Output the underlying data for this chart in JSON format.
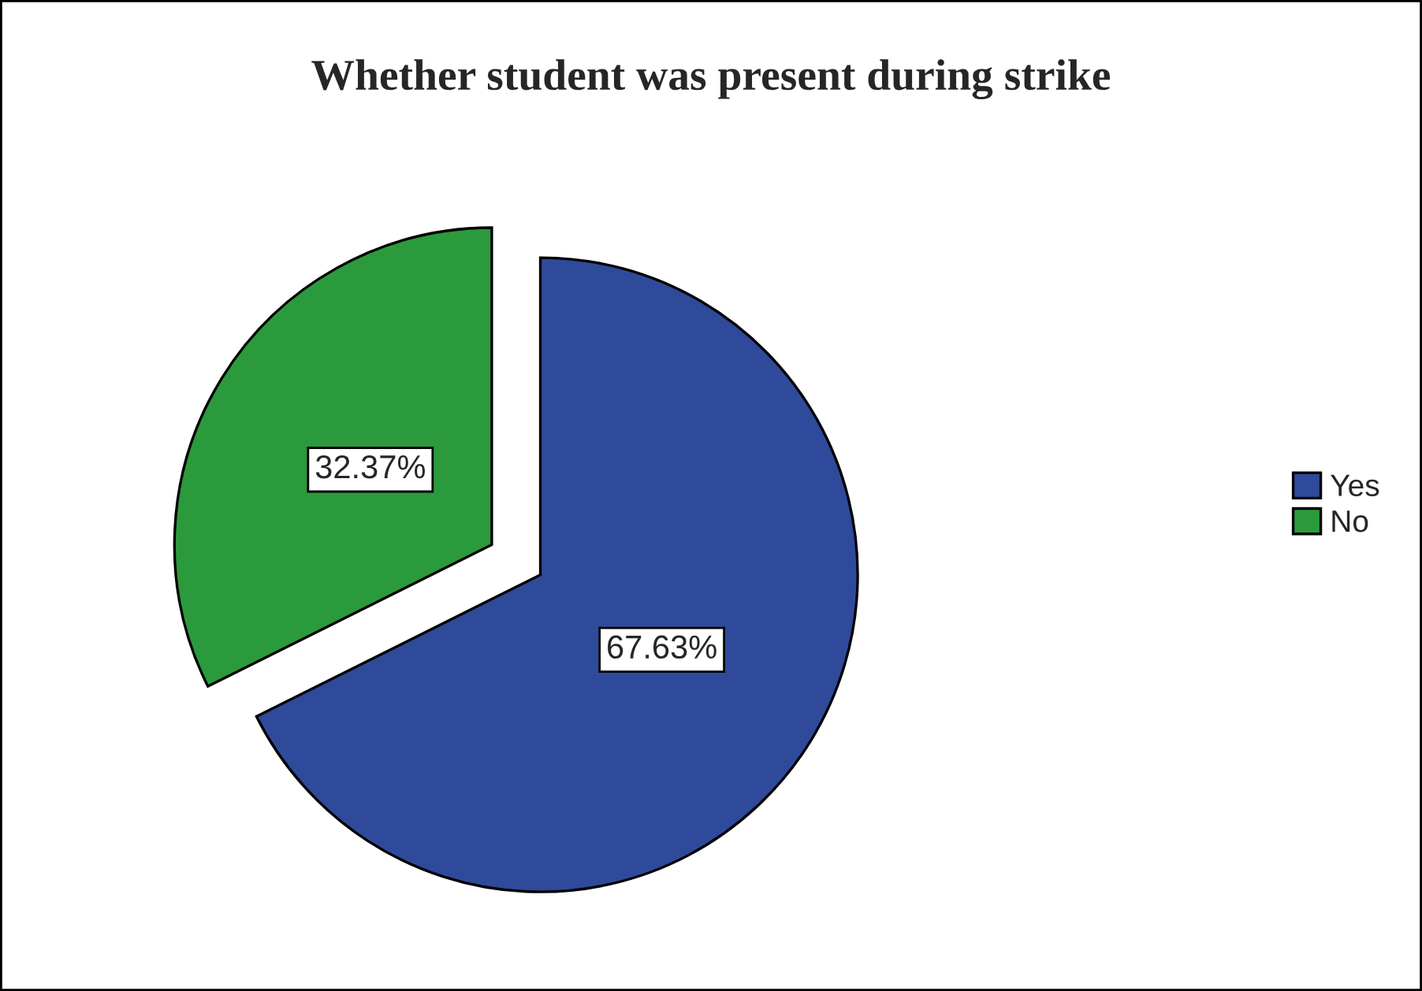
{
  "chart_data": {
    "type": "pie",
    "title": "Whether student was present during strike",
    "categories": [
      "Yes",
      "No"
    ],
    "values": [
      67.63,
      32.37
    ],
    "colors": [
      "#2f4a9b",
      "#2b9a3c"
    ],
    "value_labels": [
      "67.63%",
      "32.37%"
    ],
    "legend": "right"
  }
}
